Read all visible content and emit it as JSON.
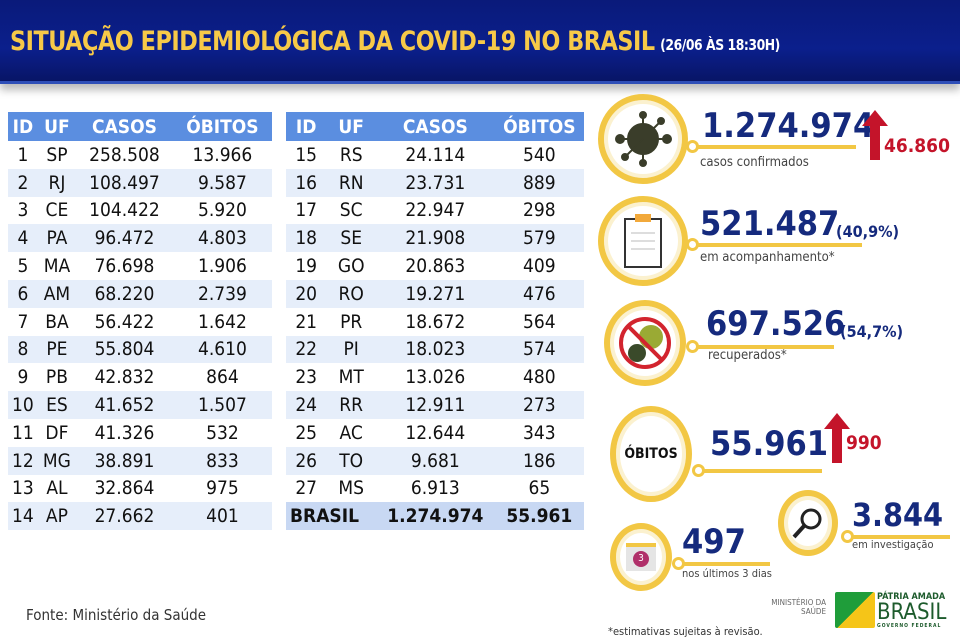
{
  "header": {
    "title": "SITUAÇÃO EPIDEMIOLÓGICA DA COVID-19 NO BRASIL",
    "timestamp": "(26/06 ÀS 18:30H)"
  },
  "table": {
    "columns": [
      "ID",
      "UF",
      "CASOS",
      "ÓBITOS"
    ],
    "left_rows": [
      [
        "1",
        "SP",
        "258.508",
        "13.966"
      ],
      [
        "2",
        "RJ",
        "108.497",
        "9.587"
      ],
      [
        "3",
        "CE",
        "104.422",
        "5.920"
      ],
      [
        "4",
        "PA",
        "96.472",
        "4.803"
      ],
      [
        "5",
        "MA",
        "76.698",
        "1.906"
      ],
      [
        "6",
        "AM",
        "68.220",
        "2.739"
      ],
      [
        "7",
        "BA",
        "56.422",
        "1.642"
      ],
      [
        "8",
        "PE",
        "55.804",
        "4.610"
      ],
      [
        "9",
        "PB",
        "42.832",
        "864"
      ],
      [
        "10",
        "ES",
        "41.652",
        "1.507"
      ],
      [
        "11",
        "DF",
        "41.326",
        "532"
      ],
      [
        "12",
        "MG",
        "38.891",
        "833"
      ],
      [
        "13",
        "AL",
        "32.864",
        "975"
      ],
      [
        "14",
        "AP",
        "27.662",
        "401"
      ]
    ],
    "right_rows": [
      [
        "15",
        "RS",
        "24.114",
        "540"
      ],
      [
        "16",
        "RN",
        "23.731",
        "889"
      ],
      [
        "17",
        "SC",
        "22.947",
        "298"
      ],
      [
        "18",
        "SE",
        "21.908",
        "579"
      ],
      [
        "19",
        "GO",
        "20.863",
        "409"
      ],
      [
        "20",
        "RO",
        "19.271",
        "476"
      ],
      [
        "21",
        "PR",
        "18.672",
        "564"
      ],
      [
        "22",
        "PI",
        "18.023",
        "574"
      ],
      [
        "23",
        "MT",
        "13.026",
        "480"
      ],
      [
        "24",
        "RR",
        "12.911",
        "273"
      ],
      [
        "25",
        "AC",
        "12.644",
        "343"
      ],
      [
        "26",
        "TO",
        "9.681",
        "186"
      ],
      [
        "27",
        "MS",
        "6.913",
        "65"
      ]
    ],
    "total": {
      "label": "BRASIL",
      "casos": "1.274.974",
      "obitos": "55.961"
    }
  },
  "source": "Fonte: Ministério da Saúde",
  "stats": {
    "confirmed": {
      "value": "1.274.974",
      "label": "casos confirmados",
      "increase": "46.860",
      "icon": "virus-icon"
    },
    "monitoring": {
      "value": "521.487",
      "pct": "(40,9%)",
      "label": "em acompanhamento*",
      "icon": "clipboard-icon"
    },
    "recovered": {
      "value": "697.526",
      "pct": "(54,7%)",
      "label": "recuperados*",
      "icon": "no-virus-icon"
    },
    "deaths": {
      "badge": "ÓBITOS",
      "value": "55.961",
      "increase": "990"
    },
    "investigation": {
      "value": "3.844",
      "label": "em investigação",
      "icon": "magnifier-icon"
    },
    "last3": {
      "value": "497",
      "label": "nos últimos 3 dias",
      "calendar_num": "3",
      "icon": "calendar-icon"
    }
  },
  "footnote": "*estimativas sujeitas à revisão.",
  "logo": {
    "ministry": "MINISTÉRIO DA SAÚDE",
    "line1": "PÁTRIA AMADA",
    "line2": "BRASIL",
    "line3": "GOVERNO FEDERAL"
  },
  "colors": {
    "banner": "#0b1f8c",
    "title": "#f7c948",
    "header": "#5b8ee0",
    "accent": "#f2c744",
    "number": "#152a7d",
    "increase": "#c4142a"
  }
}
